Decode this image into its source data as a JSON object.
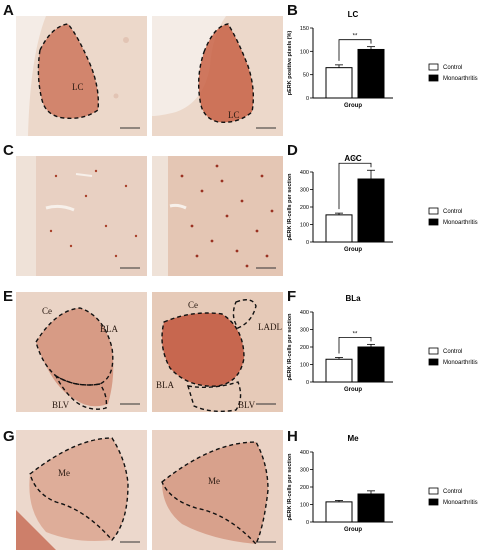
{
  "panel_letters": {
    "A": "A",
    "B": "B",
    "C": "C",
    "D": "D",
    "E": "E",
    "F": "F",
    "G": "G",
    "H": "H"
  },
  "micrographs": {
    "row_a": {
      "left_labels": [
        "LC"
      ],
      "right_labels": [
        "LC"
      ]
    },
    "row_c": {
      "left_labels": [],
      "right_labels": []
    },
    "row_e": {
      "left_labels": [
        "Ce",
        "BLA",
        "BLV"
      ],
      "right_labels": [
        "Ce",
        "LADL",
        "BLA",
        "BLV"
      ]
    },
    "row_g": {
      "left_labels": [
        "Me"
      ],
      "right_labels": [
        "Me"
      ]
    }
  },
  "legend": {
    "control": "Control",
    "monoarthritis": "Monoarthritis"
  },
  "colors": {
    "tissue_bg": "#ecd6c8",
    "stain": "#b2442a",
    "bar_control": "#ffffff",
    "bar_monoarthritis": "#000000"
  },
  "chart_data": [
    {
      "type": "bar",
      "title": "LC",
      "ylabel": "pERK positive pixels (%)",
      "xlabel": "Group",
      "categories": [
        "Control",
        "Monoarthritis"
      ],
      "values": [
        65,
        104
      ],
      "errors": [
        6,
        6
      ],
      "ylim": [
        0,
        150
      ],
      "yticks": [
        0,
        50,
        100,
        150
      ],
      "significance": "**"
    },
    {
      "type": "bar",
      "title": "ACC",
      "ylabel": "pERK IR-cells per section",
      "xlabel": "Group",
      "categories": [
        "Control",
        "Monoarthritis"
      ],
      "values": [
        155,
        360
      ],
      "errors": [
        10,
        50
      ],
      "ylim": [
        0,
        400
      ],
      "yticks": [
        0,
        100,
        200,
        300,
        400
      ],
      "significance": "**"
    },
    {
      "type": "bar",
      "title": "BLa",
      "ylabel": "pERK IR-cells per section",
      "xlabel": "Group",
      "categories": [
        "Control",
        "Monoarthritis"
      ],
      "values": [
        130,
        200
      ],
      "errors": [
        10,
        15
      ],
      "ylim": [
        0,
        400
      ],
      "yticks": [
        0,
        100,
        200,
        300,
        400
      ],
      "significance": "**"
    },
    {
      "type": "bar",
      "title": "Me",
      "ylabel": "pERK IR-cells per section",
      "xlabel": "Group",
      "categories": [
        "Control",
        "Monoarthritis"
      ],
      "values": [
        115,
        160
      ],
      "errors": [
        8,
        18
      ],
      "ylim": [
        0,
        400
      ],
      "yticks": [
        0,
        100,
        200,
        300,
        400
      ],
      "significance": ""
    }
  ]
}
